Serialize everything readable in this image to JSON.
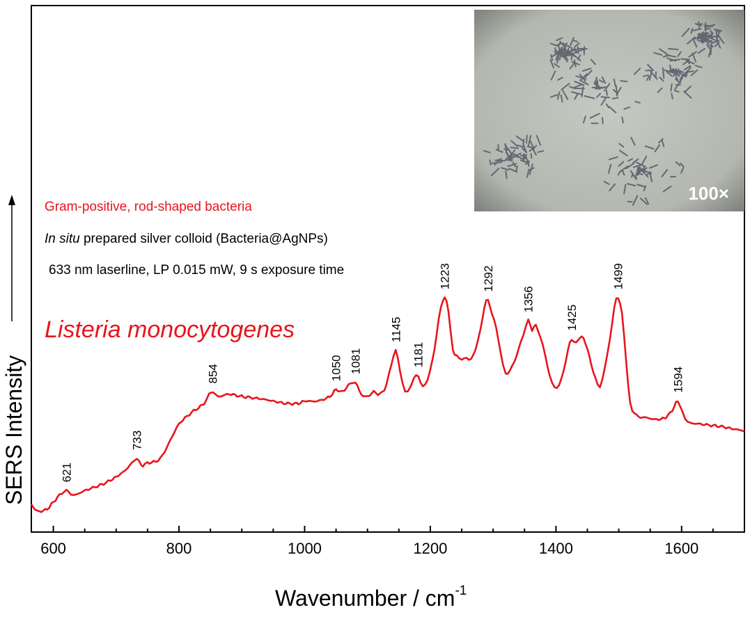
{
  "chart_data": {
    "type": "line",
    "title": "Listeria monocytogenes",
    "annotations": [
      "Gram-positive, rod-shaped bacteria",
      "In situ prepared silver colloid (Bacteria@AgNPs)",
      "633 nm laserline, LP 0.015 mW, 9 s exposure time"
    ],
    "annotation_italic_prefix": "In situ",
    "annotation_rest": " prepared silver colloid (Bacteria@AgNPs)",
    "xlabel": "Wavenumber / cm",
    "xlabel_exponent": "-1",
    "ylabel": "SERS Intensity",
    "xlim": [
      565,
      1700
    ],
    "ylim": [
      0,
      100
    ],
    "xticks": [
      600,
      800,
      1000,
      1200,
      1400,
      1600
    ],
    "xtick_labels": [
      "600",
      "800",
      "1000",
      "1200",
      "1400",
      "1600"
    ],
    "grid": false,
    "inset_label": "100×",
    "colors": {
      "spectrum": "#e8141c",
      "annotation_red": "#e8141c",
      "axis": "#000000"
    },
    "series": [
      {
        "x": [
          565,
          575,
          590,
          600,
          610,
          621,
          632,
          650,
          680,
          700,
          715,
          725,
          733,
          740,
          750,
          770,
          790,
          800,
          820,
          840,
          848,
          854,
          862,
          880,
          900,
          930,
          950,
          970,
          990,
          1000,
          1020,
          1040,
          1050,
          1060,
          1070,
          1081,
          1090,
          1100,
          1110,
          1120,
          1130,
          1138,
          1145,
          1152,
          1160,
          1168,
          1174,
          1181,
          1188,
          1196,
          1203,
          1210,
          1217,
          1223,
          1229,
          1236,
          1242,
          1250,
          1258,
          1265,
          1272,
          1280,
          1286,
          1292,
          1298,
          1305,
          1312,
          1320,
          1330,
          1340,
          1348,
          1356,
          1362,
          1368,
          1375,
          1383,
          1390,
          1398,
          1405,
          1412,
          1419,
          1425,
          1432,
          1438,
          1444,
          1450,
          1456,
          1463,
          1470,
          1478,
          1486,
          1493,
          1499,
          1505,
          1512,
          1518,
          1525,
          1532,
          1540,
          1560,
          1575,
          1585,
          1594,
          1600,
          1610,
          1630,
          1660,
          1680,
          1700
        ],
        "y": [
          6,
          3,
          4,
          7,
          10,
          12,
          10,
          12,
          15,
          18,
          21,
          24,
          26,
          23,
          24,
          26,
          36,
          41,
          46,
          50,
          54,
          55,
          53,
          54,
          53,
          52,
          51,
          50,
          50,
          51,
          51,
          53,
          56,
          55,
          58,
          59,
          54,
          53,
          55,
          54,
          58,
          67,
          73,
          64,
          55,
          57,
          61,
          62,
          57,
          61,
          68,
          80,
          92,
          96,
          90,
          73,
          71,
          69,
          70,
          69,
          74,
          82,
          92,
          95,
          89,
          83,
          72,
          63,
          66,
          73,
          80,
          86,
          82,
          84,
          79,
          71,
          62,
          57,
          58,
          64,
          73,
          78,
          76,
          79,
          78,
          74,
          67,
          61,
          57,
          66,
          78,
          92,
          96,
          89,
          68,
          50,
          46,
          44,
          44,
          43,
          44,
          47,
          51,
          47,
          42,
          41,
          40,
          39,
          38
        ]
      }
    ],
    "peak_labels": [
      {
        "x": 621,
        "y": 12,
        "label": "621"
      },
      {
        "x": 733,
        "y": 26,
        "label": "733"
      },
      {
        "x": 854,
        "y": 55,
        "label": "854"
      },
      {
        "x": 1050,
        "y": 56,
        "label": "1050"
      },
      {
        "x": 1081,
        "y": 59,
        "label": "1081"
      },
      {
        "x": 1145,
        "y": 73,
        "label": "1145"
      },
      {
        "x": 1181,
        "y": 62,
        "label": "1181"
      },
      {
        "x": 1223,
        "y": 96,
        "label": "1223"
      },
      {
        "x": 1292,
        "y": 95,
        "label": "1292"
      },
      {
        "x": 1356,
        "y": 86,
        "label": "1356"
      },
      {
        "x": 1425,
        "y": 78,
        "label": "1425"
      },
      {
        "x": 1499,
        "y": 96,
        "label": "1499"
      },
      {
        "x": 1594,
        "y": 51,
        "label": "1594"
      }
    ]
  }
}
